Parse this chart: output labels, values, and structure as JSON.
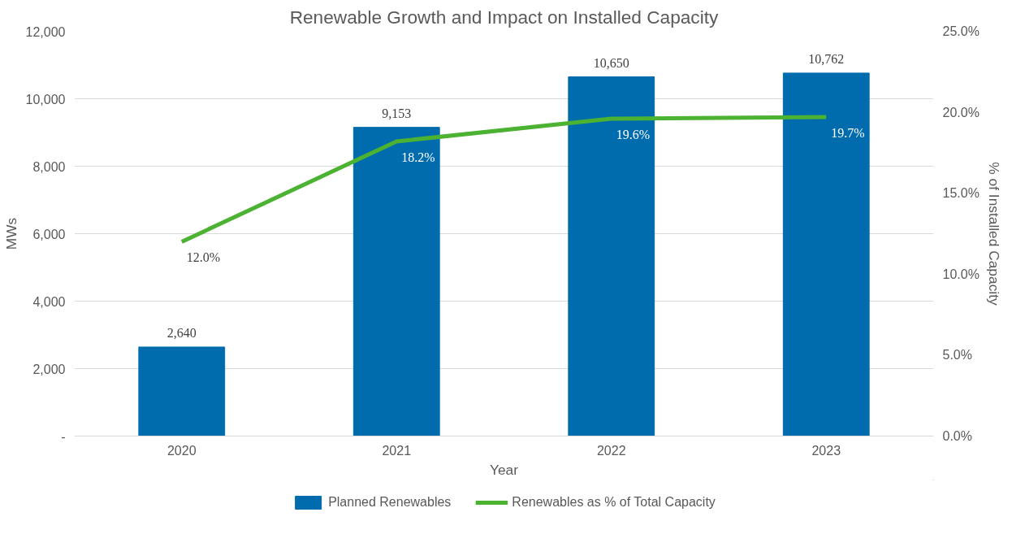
{
  "chart_data": {
    "type": "bar",
    "title": "Renewable Growth and Impact on Installed Capacity",
    "xlabel": "Year",
    "ylabel": "MWs",
    "y2label": "% of Installed Capacity",
    "categories": [
      "2020",
      "2021",
      "2022",
      "2023"
    ],
    "series": [
      {
        "name": "Planned Renewables",
        "color": "#006cad",
        "values": [
          2640,
          9153,
          10650,
          10762
        ],
        "value_labels": [
          "2,640",
          "9,153",
          "10,650",
          "10,762"
        ]
      },
      {
        "name": "Renewables as % of Total Capacity",
        "type": "line",
        "axis": "y2",
        "color": "#4cb232",
        "values": [
          12.0,
          18.2,
          19.6,
          19.7
        ],
        "value_labels": [
          "12.0%",
          "18.2%",
          "19.6%",
          "19.7%"
        ]
      }
    ],
    "ylim": [
      0,
      12000
    ],
    "yticks": [
      {
        "value": 0,
        "label": "-"
      },
      {
        "value": 2000,
        "label": "2,000"
      },
      {
        "value": 4000,
        "label": "4,000"
      },
      {
        "value": 6000,
        "label": "6,000"
      },
      {
        "value": 8000,
        "label": "8,000"
      },
      {
        "value": 10000,
        "label": "10,000"
      },
      {
        "value": 12000,
        "label": "12,000"
      }
    ],
    "y2lim": [
      0,
      25
    ],
    "y2ticks": [
      {
        "value": 0,
        "label": "0.0%"
      },
      {
        "value": 5,
        "label": "5.0%"
      },
      {
        "value": 10,
        "label": "10.0%"
      },
      {
        "value": 15,
        "label": "15.0%"
      },
      {
        "value": 20,
        "label": "20.0%"
      },
      {
        "value": 25,
        "label": "25.0%"
      }
    ],
    "grid": "y",
    "legend": "bottom"
  }
}
